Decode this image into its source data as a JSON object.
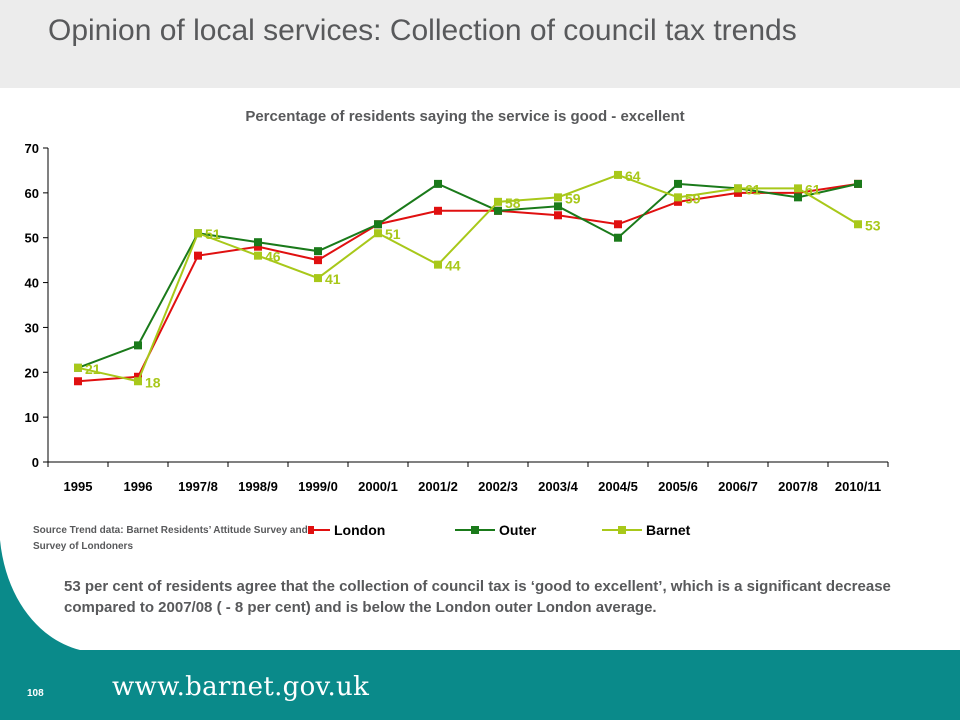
{
  "page": {
    "title": "Opinion of local services: Collection of council tax trends",
    "source_note": "Source Trend data:  Barnet   Residents’ Attitude  Survey and Survey of Londoners",
    "summary": "53 per cent of residents agree that  the collection of council tax is ‘good to excellent’, which is a significant decrease compared to 2007/08 ( - 8 per cent) and is below the London outer London average.",
    "slide_number": "108",
    "footer_url": "www.barnet.gov.uk"
  },
  "colors": {
    "title_band": "#ececec",
    "footer_band": "#0a8a8a",
    "london": "#e01010",
    "outer": "#1a7a1a",
    "barnet": "#a8c81a"
  },
  "chart_data": {
    "type": "line",
    "title": "Percentage of residents saying the service is good - excellent",
    "categories": [
      "1995",
      "1996",
      "1997/8",
      "1998/9",
      "1999/0",
      "2000/1",
      "2001/2",
      "2002/3",
      "2003/4",
      "2004/5",
      "2005/6",
      "2006/7",
      "2007/8",
      "2010/11"
    ],
    "ylim": [
      0,
      70
    ],
    "yticks": [
      "0",
      "10",
      "20",
      "30",
      "40",
      "50",
      "60",
      "70"
    ],
    "grid": false,
    "legend_position": "bottom",
    "series": [
      {
        "name": "London",
        "color": "#e01010",
        "marker": "square",
        "values": [
          18,
          19,
          46,
          48,
          45,
          53,
          56,
          56,
          55,
          53,
          58,
          60,
          60,
          62
        ]
      },
      {
        "name": "Outer",
        "color": "#1a7a1a",
        "marker": "square",
        "values": [
          21,
          26,
          51,
          49,
          47,
          53,
          62,
          56,
          57,
          50,
          62,
          61,
          59,
          62
        ]
      },
      {
        "name": "Barnet",
        "color": "#a8c81a",
        "marker": "square",
        "values": [
          21,
          18,
          51,
          46,
          41,
          51,
          44,
          58,
          59,
          64,
          59,
          61,
          61,
          53
        ],
        "data_labels": [
          "21",
          "18",
          "51",
          "46",
          "41",
          "51",
          "44",
          "58",
          "59",
          "64",
          "59",
          "61",
          "61",
          "53"
        ]
      }
    ]
  }
}
